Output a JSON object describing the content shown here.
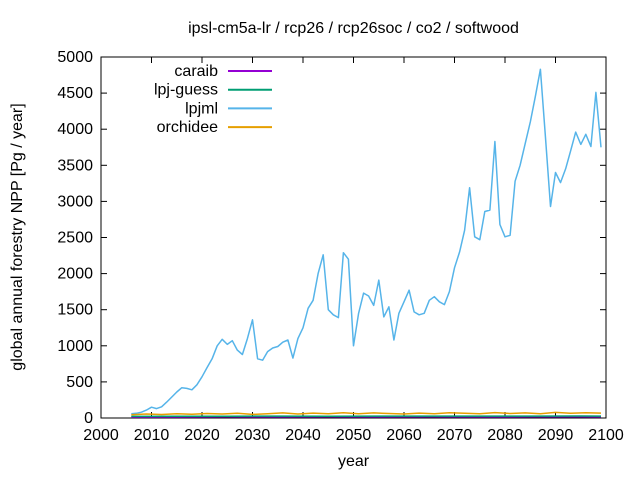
{
  "chart_data": {
    "type": "line",
    "title": "ipsl-cm5a-lr / rcp26 / rcp26soc / co2 / softwood",
    "xlabel": "year",
    "ylabel": "global annual forestry NPP [Pg / year]",
    "xlim": [
      2000,
      2100
    ],
    "ylim": [
      0,
      5000
    ],
    "xtick_step": 10,
    "ytick_step": 500,
    "grid": false,
    "legend_position": "top-left-inside",
    "axis_color": "#000000",
    "background_color": "#ffffff",
    "series": [
      {
        "name": "caraib",
        "color": "#9400d3",
        "x": [
          2006,
          2015,
          2025,
          2035,
          2045,
          2055,
          2065,
          2075,
          2085,
          2095,
          2099
        ],
        "values": [
          12,
          14,
          16,
          15,
          17,
          15,
          16,
          15,
          17,
          16,
          15
        ]
      },
      {
        "name": "lpj-guess",
        "color": "#009e73",
        "x": [
          2006,
          2015,
          2025,
          2035,
          2045,
          2055,
          2065,
          2075,
          2085,
          2095,
          2099
        ],
        "values": [
          22,
          24,
          25,
          26,
          25,
          27,
          26,
          27,
          26,
          28,
          27
        ]
      },
      {
        "name": "lpjml",
        "color": "#56b4e9",
        "x_start": 2006,
        "x_step": 1,
        "values": [
          60,
          65,
          80,
          110,
          150,
          130,
          155,
          220,
          290,
          360,
          420,
          410,
          390,
          460,
          570,
          700,
          820,
          1000,
          1090,
          1020,
          1070,
          940,
          880,
          1100,
          1360,
          820,
          800,
          920,
          970,
          990,
          1050,
          1080,
          830,
          1100,
          1250,
          1520,
          1630,
          2000,
          2260,
          1500,
          1430,
          1390,
          2290,
          2200,
          1000,
          1450,
          1730,
          1690,
          1560,
          1910,
          1400,
          1540,
          1080,
          1450,
          1610,
          1770,
          1470,
          1430,
          1450,
          1630,
          1680,
          1610,
          1570,
          1750,
          2080,
          2300,
          2600,
          3190,
          2510,
          2470,
          2860,
          2880,
          3830,
          2680,
          2510,
          2530,
          3280,
          3500,
          3800,
          4100,
          4450,
          4830,
          3900,
          2930,
          3400,
          3260,
          3450,
          3700,
          3960,
          3790,
          3930,
          3760,
          4510,
          3750
        ]
      },
      {
        "name": "orchidee",
        "color": "#e69f00",
        "x": [
          2006,
          2009,
          2012,
          2015,
          2018,
          2021,
          2024,
          2027,
          2030,
          2033,
          2036,
          2039,
          2042,
          2045,
          2048,
          2051,
          2054,
          2057,
          2060,
          2063,
          2066,
          2069,
          2072,
          2075,
          2078,
          2081,
          2084,
          2087,
          2090,
          2093,
          2096,
          2099
        ],
        "values": [
          45,
          55,
          48,
          60,
          52,
          62,
          55,
          65,
          50,
          60,
          70,
          55,
          68,
          60,
          72,
          58,
          70,
          62,
          55,
          68,
          60,
          72,
          65,
          58,
          75,
          62,
          70,
          60,
          78,
          65,
          72,
          68
        ]
      }
    ]
  }
}
